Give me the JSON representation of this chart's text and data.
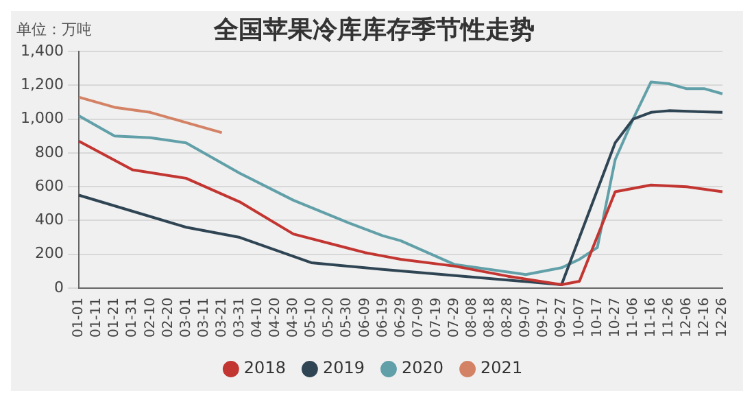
{
  "chart_data": {
    "type": "line",
    "title": "全国苹果冷库库存季节性走势",
    "ylabel": "单位：万吨",
    "categories": [
      "01-01",
      "01-11",
      "01-21",
      "01-31",
      "02-10",
      "02-20",
      "03-01",
      "03-11",
      "03-21",
      "03-31",
      "04-10",
      "04-20",
      "04-30",
      "05-10",
      "05-20",
      "05-30",
      "06-09",
      "06-19",
      "06-29",
      "07-09",
      "07-19",
      "07-29",
      "08-08",
      "08-18",
      "08-28",
      "09-07",
      "09-17",
      "09-27",
      "10-07",
      "10-17",
      "10-27",
      "11-06",
      "11-16",
      "11-26",
      "12-06",
      "12-16",
      "12-26"
    ],
    "series": [
      {
        "name": "2018",
        "color": "#c23531",
        "values": [
          870,
          null,
          null,
          700,
          null,
          null,
          650,
          null,
          null,
          510,
          null,
          null,
          320,
          null,
          null,
          null,
          210,
          190,
          170,
          null,
          null,
          130,
          null,
          null,
          70,
          null,
          null,
          20,
          40,
          null,
          570,
          null,
          610,
          null,
          600,
          null,
          570
        ]
      },
      {
        "name": "2019",
        "color": "#2f4554",
        "values": [
          550,
          null,
          null,
          null,
          null,
          null,
          360,
          null,
          null,
          300,
          null,
          null,
          null,
          150,
          null,
          null,
          null,
          110,
          null,
          null,
          null,
          null,
          null,
          null,
          null,
          null,
          null,
          20,
          null,
          null,
          860,
          1000,
          1040,
          1050,
          null,
          null,
          1040
        ]
      },
      {
        "name": "2020",
        "color": "#61a0a8",
        "values": [
          1020,
          null,
          900,
          null,
          890,
          null,
          860,
          null,
          null,
          680,
          null,
          null,
          520,
          null,
          null,
          390,
          null,
          310,
          280,
          null,
          null,
          140,
          null,
          null,
          null,
          80,
          null,
          120,
          170,
          240,
          760,
          1000,
          1220,
          1210,
          1180,
          1180,
          1150
        ]
      },
      {
        "name": "2021",
        "color": "#d48265",
        "values": [
          1130,
          null,
          1070,
          null,
          1040,
          null,
          980,
          null,
          920,
          null,
          null,
          null,
          null,
          null,
          null,
          null,
          null,
          null,
          null,
          null,
          null,
          null,
          null,
          null,
          null,
          null,
          null,
          null,
          null,
          null,
          null,
          null,
          null,
          null,
          null,
          null,
          null
        ]
      }
    ],
    "ylim": [
      0,
      1400
    ],
    "yticks": [
      {
        "value": 0,
        "label": "0"
      },
      {
        "value": 200,
        "label": "200"
      },
      {
        "value": 400,
        "label": "400"
      },
      {
        "value": 600,
        "label": "600"
      },
      {
        "value": 800,
        "label": "800"
      },
      {
        "value": 1000,
        "label": "1,000"
      },
      {
        "value": 1200,
        "label": "1,200"
      },
      {
        "value": 1400,
        "label": "1,400"
      }
    ],
    "grid": "y",
    "legend": "bottom",
    "marker": "none",
    "line_style": "solid"
  }
}
